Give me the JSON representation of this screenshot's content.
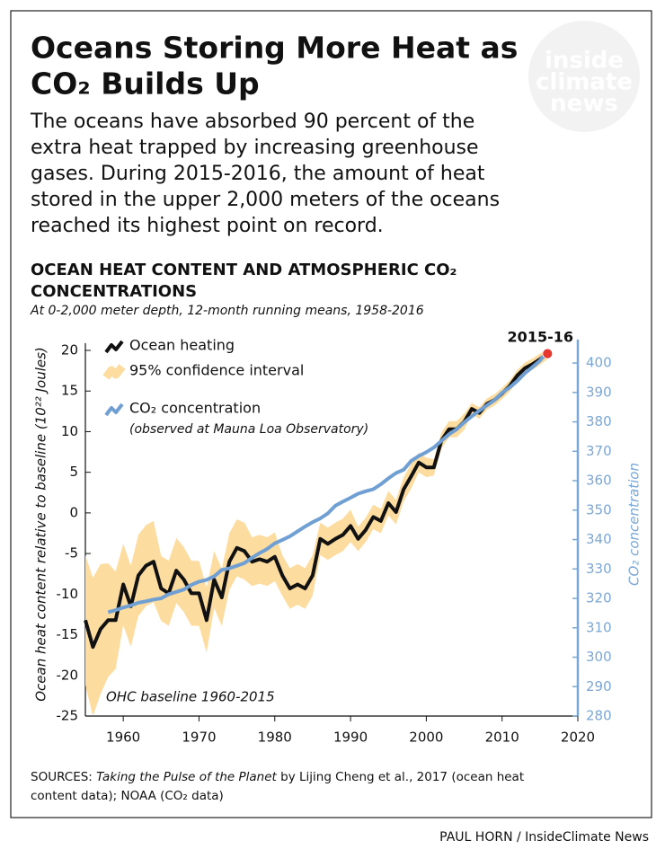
{
  "chart_data": {
    "type": "line",
    "title": [
      "Oceans Storing More Heat as",
      "CO₂ Builds Up"
    ],
    "description": [
      "The oceans have absorbed 90 percent of the",
      "extra heat trapped by increasing greenhouse",
      "gases. During 2015-2016, the amount of heat",
      "stored in the upper 2,000 meters of the oceans",
      "reached its highest point on record."
    ],
    "chart_title": [
      "OCEAN HEAT CONTENT AND ATMOSPHERIC CO₂",
      "CONCENTRATIONS"
    ],
    "subtitle": "At 0-2,000 meter depth, 12-month running means, 1958-2016",
    "ylabel": "Ocean heat content relative to baseline (10²² Joules)",
    "y2label": "CO₂ concentration",
    "annotation": "OHC baseline 1960-2015",
    "highlight_label": "2015-16",
    "logo": [
      "inside",
      "climate",
      "news"
    ],
    "sources": [
      [
        "SOURCES: ",
        "Taking the Pulse of the Planet",
        " by Lijing Cheng et al., 2017 (ocean heat"
      ],
      [
        "content data); NOAA (CO₂ data)"
      ]
    ],
    "credit": "PAUL HORN / InsideClimate News",
    "xlim": [
      1955,
      2020
    ],
    "xticks": [
      1960,
      1970,
      1980,
      1990,
      2000,
      2010,
      2020
    ],
    "ylim": [
      -25,
      20
    ],
    "yticks": [
      -25,
      -20,
      -15,
      -10,
      -5,
      0,
      5,
      10,
      15,
      20
    ],
    "y2lim": [
      280,
      404.3
    ],
    "y2ticks": [
      280,
      290,
      300,
      310,
      320,
      330,
      340,
      350,
      360,
      370,
      380,
      390,
      400
    ],
    "x": [
      1955,
      1956,
      1957,
      1958,
      1959,
      1960,
      1961,
      1962,
      1963,
      1964,
      1965,
      1966,
      1967,
      1968,
      1969,
      1970,
      1971,
      1972,
      1973,
      1974,
      1975,
      1976,
      1977,
      1978,
      1979,
      1980,
      1981,
      1982,
      1983,
      1984,
      1985,
      1986,
      1987,
      1988,
      1989,
      1990,
      1991,
      1992,
      1993,
      1994,
      1995,
      1996,
      1997,
      1998,
      1999,
      2000,
      2001,
      2002,
      2003,
      2004,
      2005,
      2006,
      2007,
      2008,
      2009,
      2010,
      2011,
      2012,
      2013,
      2014,
      2015,
      2016
    ],
    "series": [
      {
        "name": "Ocean heating",
        "color": "#111111",
        "values": [
          -13.2,
          -16.5,
          -14.3,
          -13.2,
          -13.2,
          -8.8,
          -11.5,
          -7.7,
          -6.5,
          -6.0,
          -9.3,
          -9.9,
          -7.1,
          -8.2,
          -9.9,
          -9.9,
          -13.2,
          -8.2,
          -10.4,
          -6.0,
          -4.3,
          -4.7,
          -6.0,
          -5.7,
          -6.0,
          -5.4,
          -7.7,
          -9.3,
          -8.8,
          -9.3,
          -7.7,
          -3.2,
          -3.8,
          -3.2,
          -2.7,
          -1.6,
          -3.2,
          -2.1,
          -0.5,
          -1.0,
          1.2,
          0.1,
          2.9,
          4.5,
          6.2,
          5.6,
          5.6,
          8.9,
          10.3,
          10.3,
          11.2,
          12.8,
          12.3,
          13.4,
          13.9,
          14.7,
          15.6,
          16.9,
          17.8,
          18.3,
          18.9,
          19.6
        ]
      },
      {
        "name": "95% confidence interval",
        "color": "#fddca0",
        "lower": [
          -21.2,
          -25.0,
          -22.3,
          -20.2,
          -19.2,
          -13.8,
          -16.5,
          -12.7,
          -11.5,
          -11.0,
          -13.3,
          -13.9,
          -11.1,
          -12.2,
          -13.9,
          -13.9,
          -17.2,
          -11.7,
          -13.9,
          -9.5,
          -7.8,
          -8.2,
          -9.0,
          -8.7,
          -9.0,
          -8.4,
          -10.2,
          -11.8,
          -11.3,
          -11.8,
          -10.2,
          -5.2,
          -5.8,
          -5.2,
          -4.7,
          -3.6,
          -4.7,
          -3.6,
          -2.0,
          -2.5,
          -0.3,
          -1.4,
          1.4,
          3.0,
          5.0,
          4.4,
          4.6,
          7.9,
          9.3,
          9.3,
          10.2,
          12.1,
          11.6,
          12.7,
          13.2,
          14.0,
          14.9,
          16.2,
          17.1,
          17.6,
          18.2,
          18.9
        ],
        "upper": [
          -5.2,
          -8.0,
          -6.3,
          -6.2,
          -7.2,
          -3.8,
          -6.5,
          -2.7,
          -1.5,
          -1.0,
          -5.3,
          -5.9,
          -3.1,
          -4.2,
          -5.9,
          -5.9,
          -9.2,
          -4.7,
          -6.9,
          -2.5,
          -0.8,
          -1.2,
          -3.0,
          -2.7,
          -3.0,
          -2.4,
          -5.2,
          -6.8,
          -6.3,
          -6.8,
          -5.2,
          -1.2,
          -1.8,
          -1.2,
          -0.7,
          0.4,
          -1.7,
          -0.6,
          1.0,
          0.5,
          2.7,
          1.6,
          4.4,
          6.0,
          7.4,
          6.8,
          6.6,
          9.9,
          11.3,
          11.3,
          12.2,
          13.5,
          13.0,
          14.1,
          14.6,
          15.4,
          16.3,
          17.6,
          18.5,
          19.0,
          19.6,
          20.3
        ]
      },
      {
        "name": "CO₂ concentration",
        "note": "(observed at Mauna Loa Observatory)",
        "color": "#6f9fd3",
        "axis": "y2",
        "values": [
          null,
          null,
          null,
          315.3,
          316.0,
          316.9,
          317.6,
          318.5,
          319.0,
          319.6,
          320.0,
          321.4,
          322.2,
          323.0,
          324.6,
          325.7,
          326.3,
          327.5,
          329.7,
          330.2,
          331.1,
          332.0,
          333.8,
          335.4,
          336.8,
          338.7,
          339.9,
          341.1,
          342.8,
          344.4,
          345.9,
          347.2,
          348.9,
          351.5,
          352.9,
          354.2,
          355.6,
          356.4,
          357.1,
          358.8,
          360.8,
          362.6,
          363.7,
          366.7,
          368.4,
          369.7,
          371.3,
          373.5,
          375.8,
          377.5,
          379.8,
          381.9,
          383.8,
          385.6,
          387.4,
          389.9,
          391.7,
          393.9,
          396.5,
          398.6,
          400.8,
          404.2
        ]
      }
    ],
    "highlight_color": "#e8352e",
    "y2_color": "#7aa7d6"
  }
}
